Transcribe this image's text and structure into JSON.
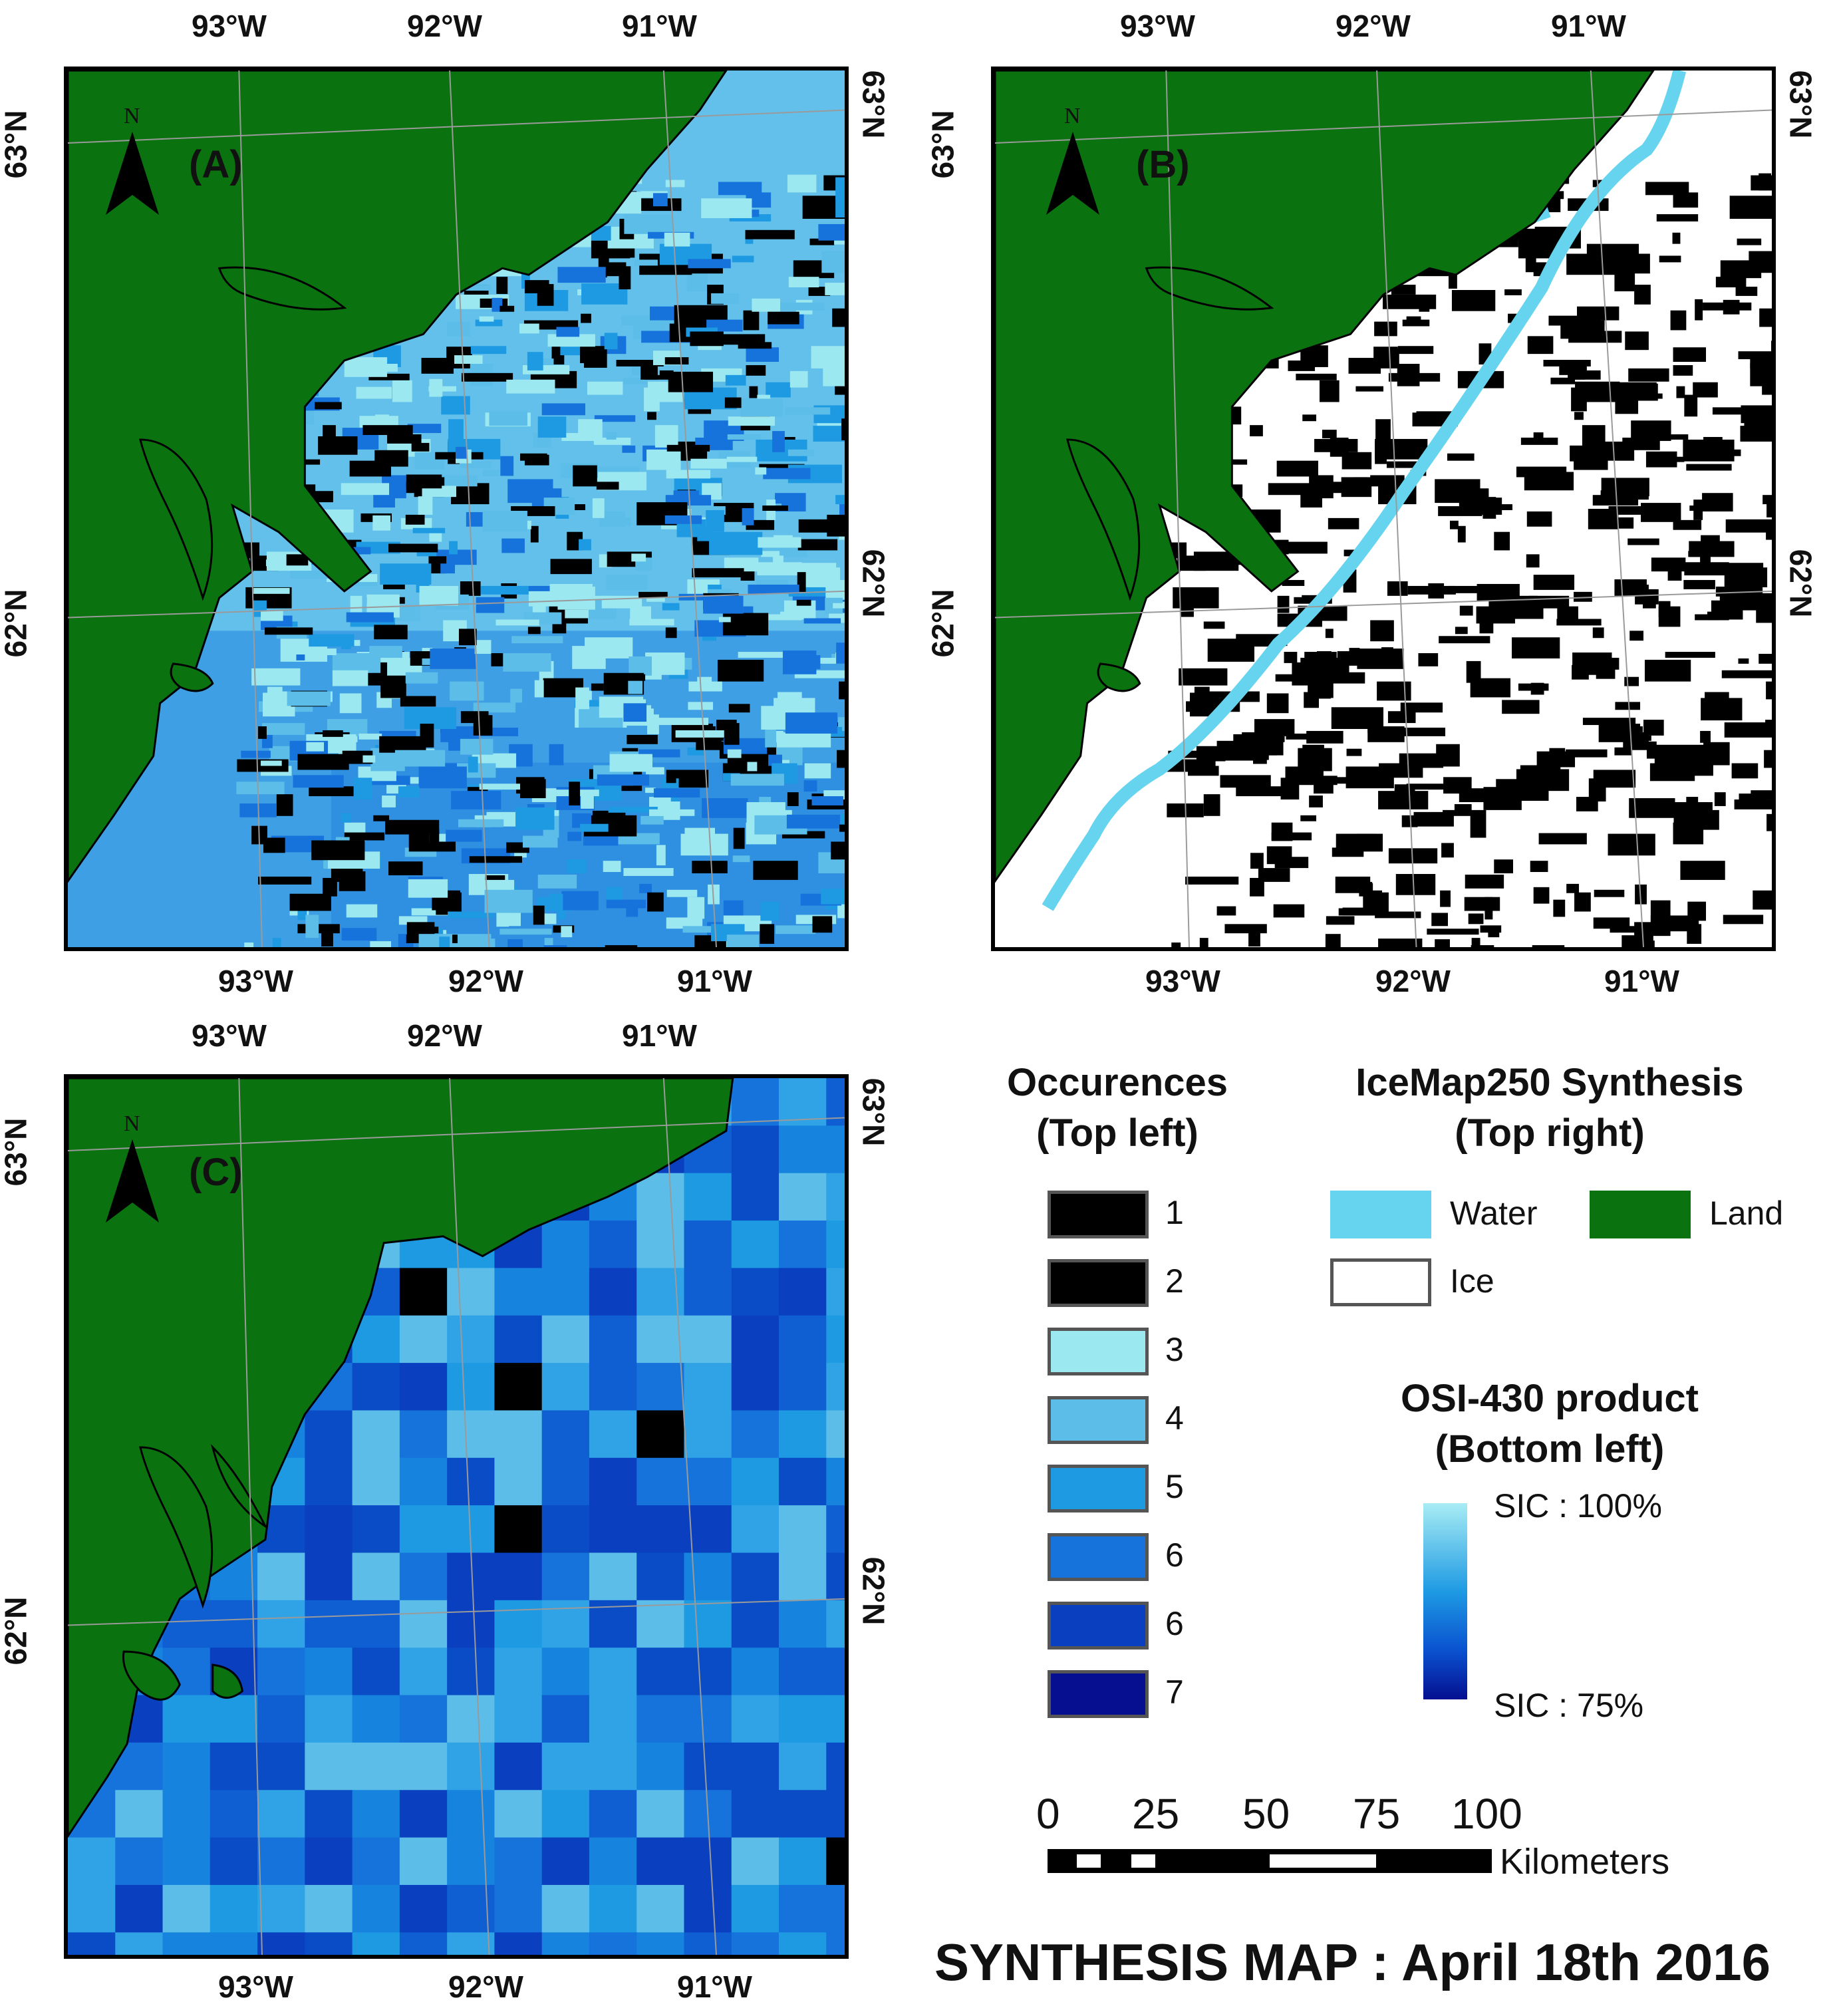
{
  "panels": {
    "a": {
      "label": "(A)",
      "top_ticks": [
        "93°W",
        "92°W",
        "91°W"
      ],
      "bottom_ticks": [
        "93°W",
        "92°W",
        "91°W"
      ],
      "left_ticks": [
        "63°N",
        "62°N"
      ],
      "right_ticks": [
        "63°N",
        "62°N"
      ],
      "north": "N"
    },
    "b": {
      "label": "(B)",
      "top_ticks": [
        "93°W",
        "92°W",
        "91°W"
      ],
      "bottom_ticks": [
        "93°W",
        "92°W",
        "91°W"
      ],
      "left_ticks": [
        "63°N",
        "62°N"
      ],
      "right_ticks": [
        "63°N",
        "62°N"
      ],
      "north": "N"
    },
    "c": {
      "label": "(C)",
      "top_ticks": [
        "93°W",
        "92°W",
        "91°W"
      ],
      "bottom_ticks": [
        "93°W",
        "92°W",
        "91°W"
      ],
      "left_ticks": [
        "63°N",
        "62°N"
      ],
      "right_ticks": [
        "63°N",
        "62°N"
      ],
      "north": "N"
    }
  },
  "legend_occ": {
    "title_line1": "Occurences",
    "title_line2": "(Top left)",
    "items": [
      {
        "label": "1",
        "color": "#000000"
      },
      {
        "label": "2",
        "color": "#000000"
      },
      {
        "label": "3",
        "color": "#9ce8f0"
      },
      {
        "label": "4",
        "color": "#5bbde8"
      },
      {
        "label": "5",
        "color": "#1e9ae3"
      },
      {
        "label": "6",
        "color": "#1673db"
      },
      {
        "label": "6",
        "color": "#0a3fbf"
      },
      {
        "label": "7",
        "color": "#050f8f"
      }
    ]
  },
  "legend_icemap": {
    "title_line1": "IceMap250 Synthesis",
    "title_line2": "(Top right)",
    "water": "Water",
    "water_color": "#66d4ee",
    "land": "Land",
    "land_color": "#0a720e",
    "ice": "Ice",
    "ice_color": "#ffffff"
  },
  "legend_osi": {
    "title_line1": "OSI-430 product",
    "title_line2": "(Bottom left)",
    "max_label": "SIC : 100%",
    "min_label": "SIC : 75%",
    "gradient_top": "#a8ecf4",
    "gradient_mid": "#1e9ae3",
    "gradient_bottom": "#050f8f"
  },
  "scalebar": {
    "ticks": [
      "0",
      "25",
      "50",
      "75",
      "100"
    ],
    "unit": "Kilometers"
  },
  "main_title": "SYNTHESIS MAP : April 18th 2016"
}
